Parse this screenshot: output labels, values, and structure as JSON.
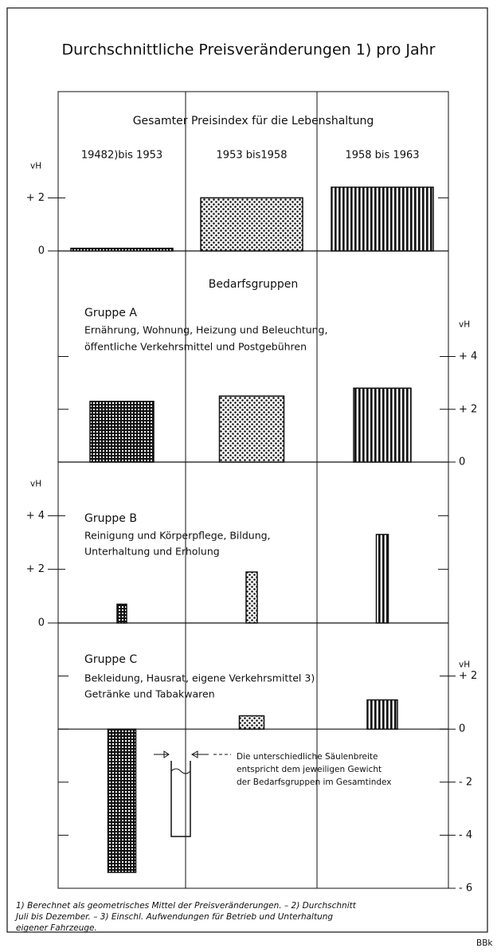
{
  "title": "Durchschnittliche Preisveränderungen 1) pro Jahr",
  "chart_data": [
    {
      "type": "bar",
      "title": "Gesamter Preisindex für die Lebenshaltung",
      "categories": [
        "19482)bis 1953",
        "1953 bis1958",
        "1958 bis 1963"
      ],
      "values": [
        0.1,
        2.0,
        2.4
      ],
      "ylim": [
        0,
        6
      ],
      "yticks": [
        0,
        {
          "value": 2,
          "label": "+ 2"
        }
      ],
      "ylabel": "vH",
      "y_axis": "left",
      "color": "#111"
    },
    {
      "type": "bar",
      "heading": "Bedarfsgruppen",
      "title": "Gruppe A",
      "subtitle": [
        "Ernährung, Wohnung, Heizung und Beleuchtung,",
        "öffentliche Verkehrsmittel und Postgebühren"
      ],
      "values": [
        2.3,
        2.5,
        2.8
      ],
      "ylim": [
        0,
        8
      ],
      "yticks": [
        0,
        {
          "value": 2,
          "label": "+ 2"
        },
        {
          "value": 4,
          "label": "+ 4"
        }
      ],
      "ylabel": "vH",
      "y_axis": "right",
      "color": "#111"
    },
    {
      "type": "bar",
      "title": "Gruppe B",
      "subtitle": [
        "Reinigung und Körperpflege, Bildung,",
        "Unterhaltung und Erholung"
      ],
      "values": [
        0.7,
        1.9,
        3.3
      ],
      "ylim": [
        0,
        6
      ],
      "yticks": [
        0,
        {
          "value": 2,
          "label": "+ 2"
        },
        {
          "value": 4,
          "label": "+ 4"
        }
      ],
      "ylabel": "vH",
      "y_axis": "left",
      "color": "#111"
    },
    {
      "type": "bar",
      "title": "Gruppe C",
      "subtitle": [
        "Bekleidung, Hausrat, eigene Verkehrsmittel 3)",
        "Getränke und Tabakwaren"
      ],
      "values": [
        -5.4,
        0.5,
        1.1
      ],
      "ylim": [
        -6,
        4
      ],
      "yticks": [
        {
          "value": -6,
          "label": "- 6"
        },
        {
          "value": -4,
          "label": "- 4"
        },
        {
          "value": -2,
          "label": "- 2"
        },
        0,
        {
          "value": 2,
          "label": "+ 2"
        }
      ],
      "ylabel": "vH",
      "y_axis": "right",
      "color": "#111"
    }
  ],
  "note": [
    "Die unterschiedliche Säulenbreite",
    "entspricht dem jeweiligen Gewicht",
    "der Bedarfsgruppen im Gesamtindex"
  ],
  "footnotes": [
    "1) Berechnet als geometrisches Mittel der Preisveränderungen. – 2) Durchschnitt",
    "Juli bis Dezember. – 3) Einschl. Aufwendungen für Betrieb und Unterhaltung",
    "eigener Fahrzeuge."
  ],
  "source": "BBk"
}
